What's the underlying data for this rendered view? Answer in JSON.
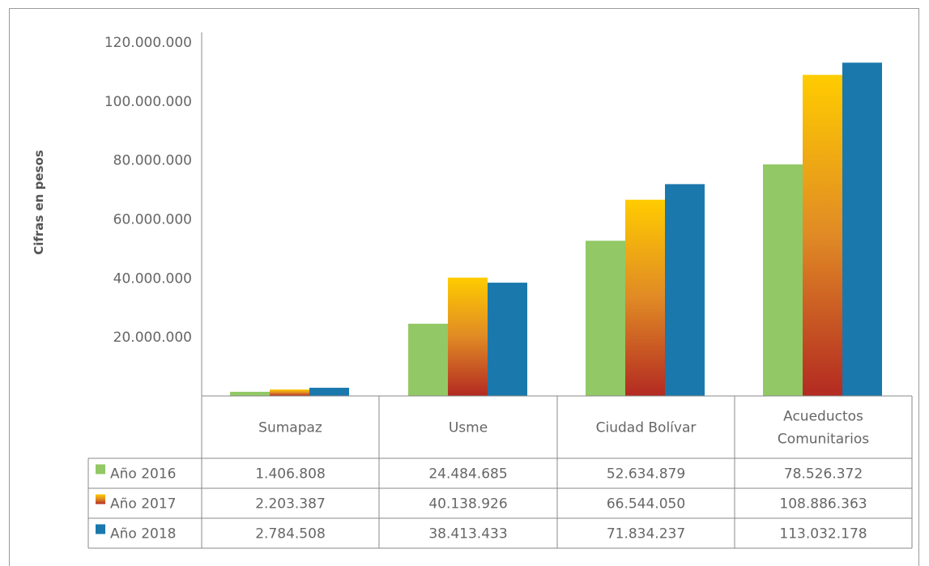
{
  "chart_data": {
    "type": "bar",
    "ylabel": "Cifras en pesos",
    "ylim": [
      0,
      120000000
    ],
    "yticks": [
      "120.000.000",
      "100.000.000",
      "80.000.000",
      "60.000.000",
      "40.000.000",
      "20.000.000"
    ],
    "categories": [
      {
        "lines": [
          "Sumapaz"
        ]
      },
      {
        "lines": [
          "Usme"
        ]
      },
      {
        "lines": [
          "Ciudad Bolívar"
        ]
      },
      {
        "lines": [
          "Acueductos",
          "Comunitarios"
        ]
      }
    ],
    "series": [
      {
        "name": "Año 2016",
        "values": [
          1406808,
          24484685,
          52634879,
          78526372
        ],
        "labels": [
          "1.406.808",
          "24.484.685",
          "52.634.879",
          "78.526.372"
        ],
        "color": "#92c865"
      },
      {
        "name": "Año 2017",
        "values": [
          2203387,
          40138926,
          66544050,
          108886363
        ],
        "labels": [
          "2.203.387",
          "40.138.926",
          "66.544.050",
          "108.886.363"
        ],
        "color_top": "#ffcc00",
        "color_mid": "#e08a25",
        "color_bottom": "#b32a22"
      },
      {
        "name": "Año 2018",
        "values": [
          2784508,
          38413433,
          71834237,
          113032178
        ],
        "labels": [
          "2.784.508",
          "38.413.433",
          "71.834.237",
          "113.032.178"
        ],
        "color": "#1a78ad"
      }
    ],
    "grid": false,
    "legend": "data-table"
  }
}
